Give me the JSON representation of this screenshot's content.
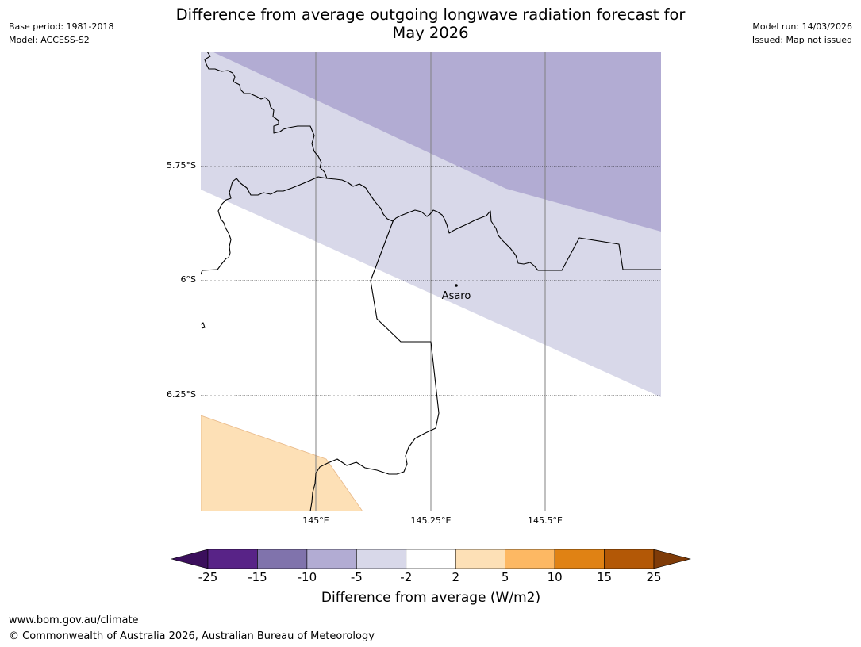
{
  "header": {
    "title_line1": "Difference from average outgoing longwave radiation forecast for",
    "title_line2": "May 2026",
    "base_period": "Base period: 1981-2018",
    "model": "Model: ACCESS-S2",
    "model_run": "Model run: 14/03/2026",
    "issued": "Issued: Map not issued"
  },
  "map": {
    "lat_labels": [
      "5.75°S",
      "6°S",
      "6.25°S"
    ],
    "lon_labels": [
      "145°E",
      "145.25°E",
      "145.5°E"
    ],
    "place_label": "Asaro",
    "colors": {
      "minus_10_to_5": "#b2acd3",
      "minus_5_to_2": "#d8d8e9",
      "plus_2_to_5": "#fde0b6",
      "border": "#000000",
      "grid": "#808080"
    }
  },
  "colorbar": {
    "title": "Difference from average (W/m2)",
    "tick_labels": [
      "-25",
      "-15",
      "-10",
      "-5",
      "-2",
      "2",
      "5",
      "10",
      "15",
      "25"
    ],
    "colors": [
      "#3b0f5c",
      "#582387",
      "#8073ac",
      "#b2acd3",
      "#d8d8e9",
      "#ffffff",
      "#fde0b6",
      "#fdb863",
      "#e08214",
      "#b35806",
      "#7f3b08"
    ]
  },
  "footer": {
    "url": "www.bom.gov.au/climate",
    "copyright": "© Commonwealth of Australia 2026, Australian Bureau of Meteorology"
  }
}
